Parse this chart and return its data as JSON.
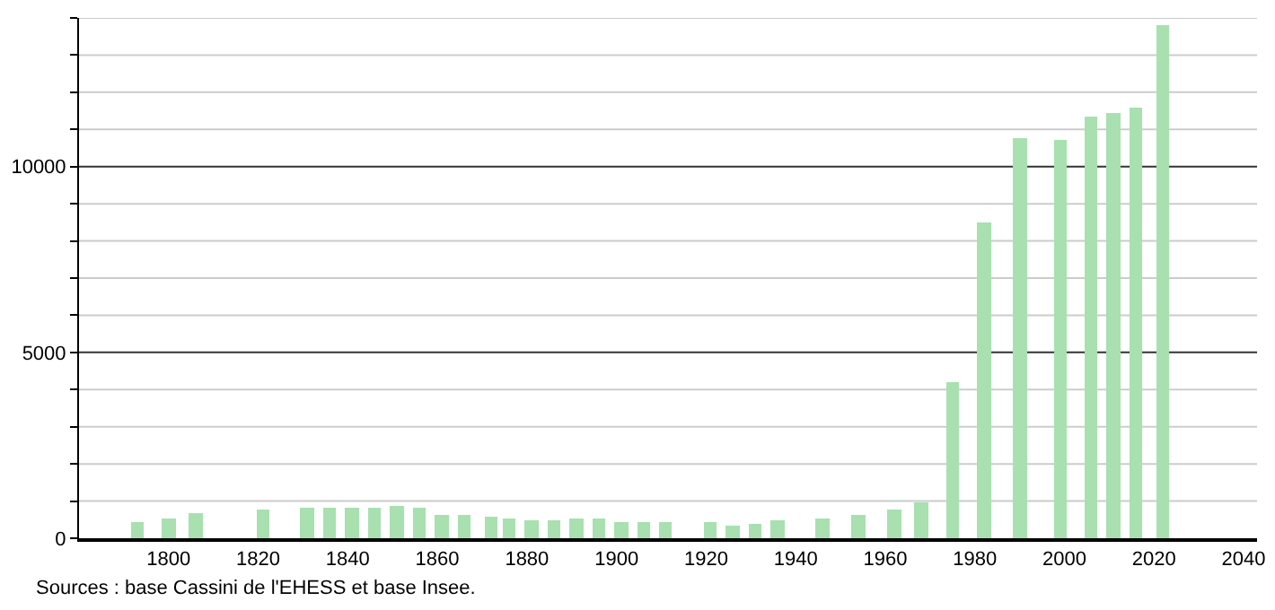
{
  "chart_data": {
    "type": "bar",
    "x": [
      1793,
      1800,
      1806,
      1821,
      1831,
      1836,
      1841,
      1846,
      1851,
      1856,
      1861,
      1866,
      1872,
      1876,
      1881,
      1886,
      1891,
      1896,
      1901,
      1906,
      1911,
      1921,
      1926,
      1931,
      1936,
      1946,
      1954,
      1962,
      1968,
      1975,
      1982,
      1990,
      1999,
      2006,
      2011,
      2016,
      2022
    ],
    "values": [
      450,
      550,
      700,
      750,
      800,
      800,
      800,
      800,
      850,
      800,
      650,
      650,
      600,
      550,
      500,
      500,
      550,
      550,
      450,
      450,
      450,
      450,
      350,
      400,
      500,
      550,
      650,
      750,
      950,
      4200,
      8500,
      10750,
      10700,
      11350,
      11450,
      11600,
      13800
    ],
    "color": "#a8e0b0",
    "xlim": [
      1780,
      2043
    ],
    "xticks": [
      1800,
      1820,
      1840,
      1860,
      1880,
      1900,
      1920,
      1940,
      1960,
      1980,
      2000,
      2020,
      2040
    ],
    "ylim": [
      0,
      14000
    ],
    "yticks": [
      0,
      {
        "value": 1000,
        "label": null
      },
      {
        "value": 2000,
        "label": null
      },
      {
        "value": 3000,
        "label": null
      },
      {
        "value": 4000,
        "label": null
      },
      {
        "value": 5000,
        "label": "5000"
      },
      {
        "value": 6000,
        "label": null
      },
      {
        "value": 7000,
        "label": null
      },
      {
        "value": 8000,
        "label": null
      },
      {
        "value": 9000,
        "label": null
      },
      {
        "value": 10000,
        "label": "10000"
      },
      {
        "value": 11000,
        "label": null
      },
      {
        "value": 12000,
        "label": null
      },
      {
        "value": 13000,
        "label": null
      },
      {
        "value": 14000,
        "label": null
      }
    ],
    "grid": "y",
    "annotations": [
      "Sources : base Cassini de l'EHESS et base Insee."
    ]
  }
}
